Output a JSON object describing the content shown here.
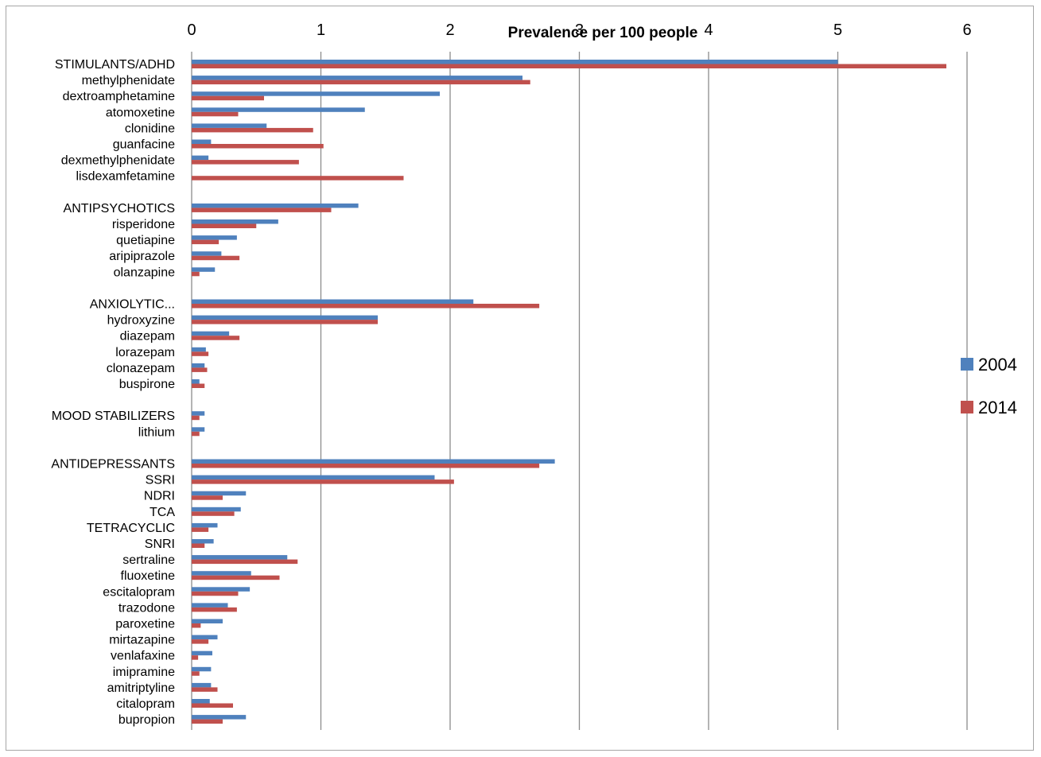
{
  "chart_data": {
    "type": "bar",
    "orientation": "horizontal",
    "title": "Prevalence per 100 people",
    "xlim": [
      0,
      6
    ],
    "x_ticks": [
      "0",
      "1",
      "2",
      "3",
      "4",
      "5",
      "6"
    ],
    "grid": "vertical",
    "legend_position": "right",
    "categories": [
      "STIMULANTS/ADHD",
      "methylphenidate",
      "dextroamphetamine",
      "atomoxetine",
      "clonidine",
      "guanfacine",
      "dexmethylphenidate",
      "lisdexamfetamine",
      "",
      "ANTIPSYCHOTICS",
      "risperidone",
      "quetiapine",
      "aripiprazole",
      "olanzapine",
      "",
      "ANXIOLYTIC...",
      "hydroxyzine",
      "diazepam",
      "lorazepam",
      "clonazepam",
      "buspirone",
      "",
      "MOOD STABILIZERS",
      "lithium",
      "",
      "ANTIDEPRESSANTS",
      "SSRI",
      "NDRI",
      "TCA",
      "TETRACYCLIC",
      "SNRI",
      "sertraline",
      "fluoxetine",
      "escitalopram",
      "trazodone",
      "paroxetine",
      "mirtazapine",
      "venlafaxine",
      "imipramine",
      "amitriptyline",
      "citalopram",
      "bupropion"
    ],
    "series": [
      {
        "name": "2004",
        "color": "#4f81bd",
        "values": [
          5.0,
          2.56,
          1.92,
          1.34,
          0.58,
          0.15,
          0.13,
          0.0,
          null,
          1.29,
          0.67,
          0.35,
          0.23,
          0.18,
          null,
          2.18,
          1.44,
          0.29,
          0.11,
          0.1,
          0.06,
          null,
          0.1,
          0.1,
          null,
          2.81,
          1.88,
          0.42,
          0.38,
          0.2,
          0.17,
          0.74,
          0.46,
          0.45,
          0.28,
          0.24,
          0.2,
          0.16,
          0.15,
          0.15,
          0.14,
          0.42
        ]
      },
      {
        "name": "2014",
        "color": "#c0504d",
        "values": [
          5.84,
          2.62,
          0.56,
          0.36,
          0.94,
          1.02,
          0.83,
          1.64,
          null,
          1.08,
          0.5,
          0.21,
          0.37,
          0.06,
          null,
          2.69,
          1.44,
          0.37,
          0.13,
          0.12,
          0.1,
          null,
          0.06,
          0.06,
          null,
          2.69,
          2.03,
          0.24,
          0.33,
          0.13,
          0.1,
          0.82,
          0.68,
          0.36,
          0.35,
          0.07,
          0.13,
          0.05,
          0.06,
          0.2,
          0.32,
          0.24
        ]
      }
    ]
  }
}
